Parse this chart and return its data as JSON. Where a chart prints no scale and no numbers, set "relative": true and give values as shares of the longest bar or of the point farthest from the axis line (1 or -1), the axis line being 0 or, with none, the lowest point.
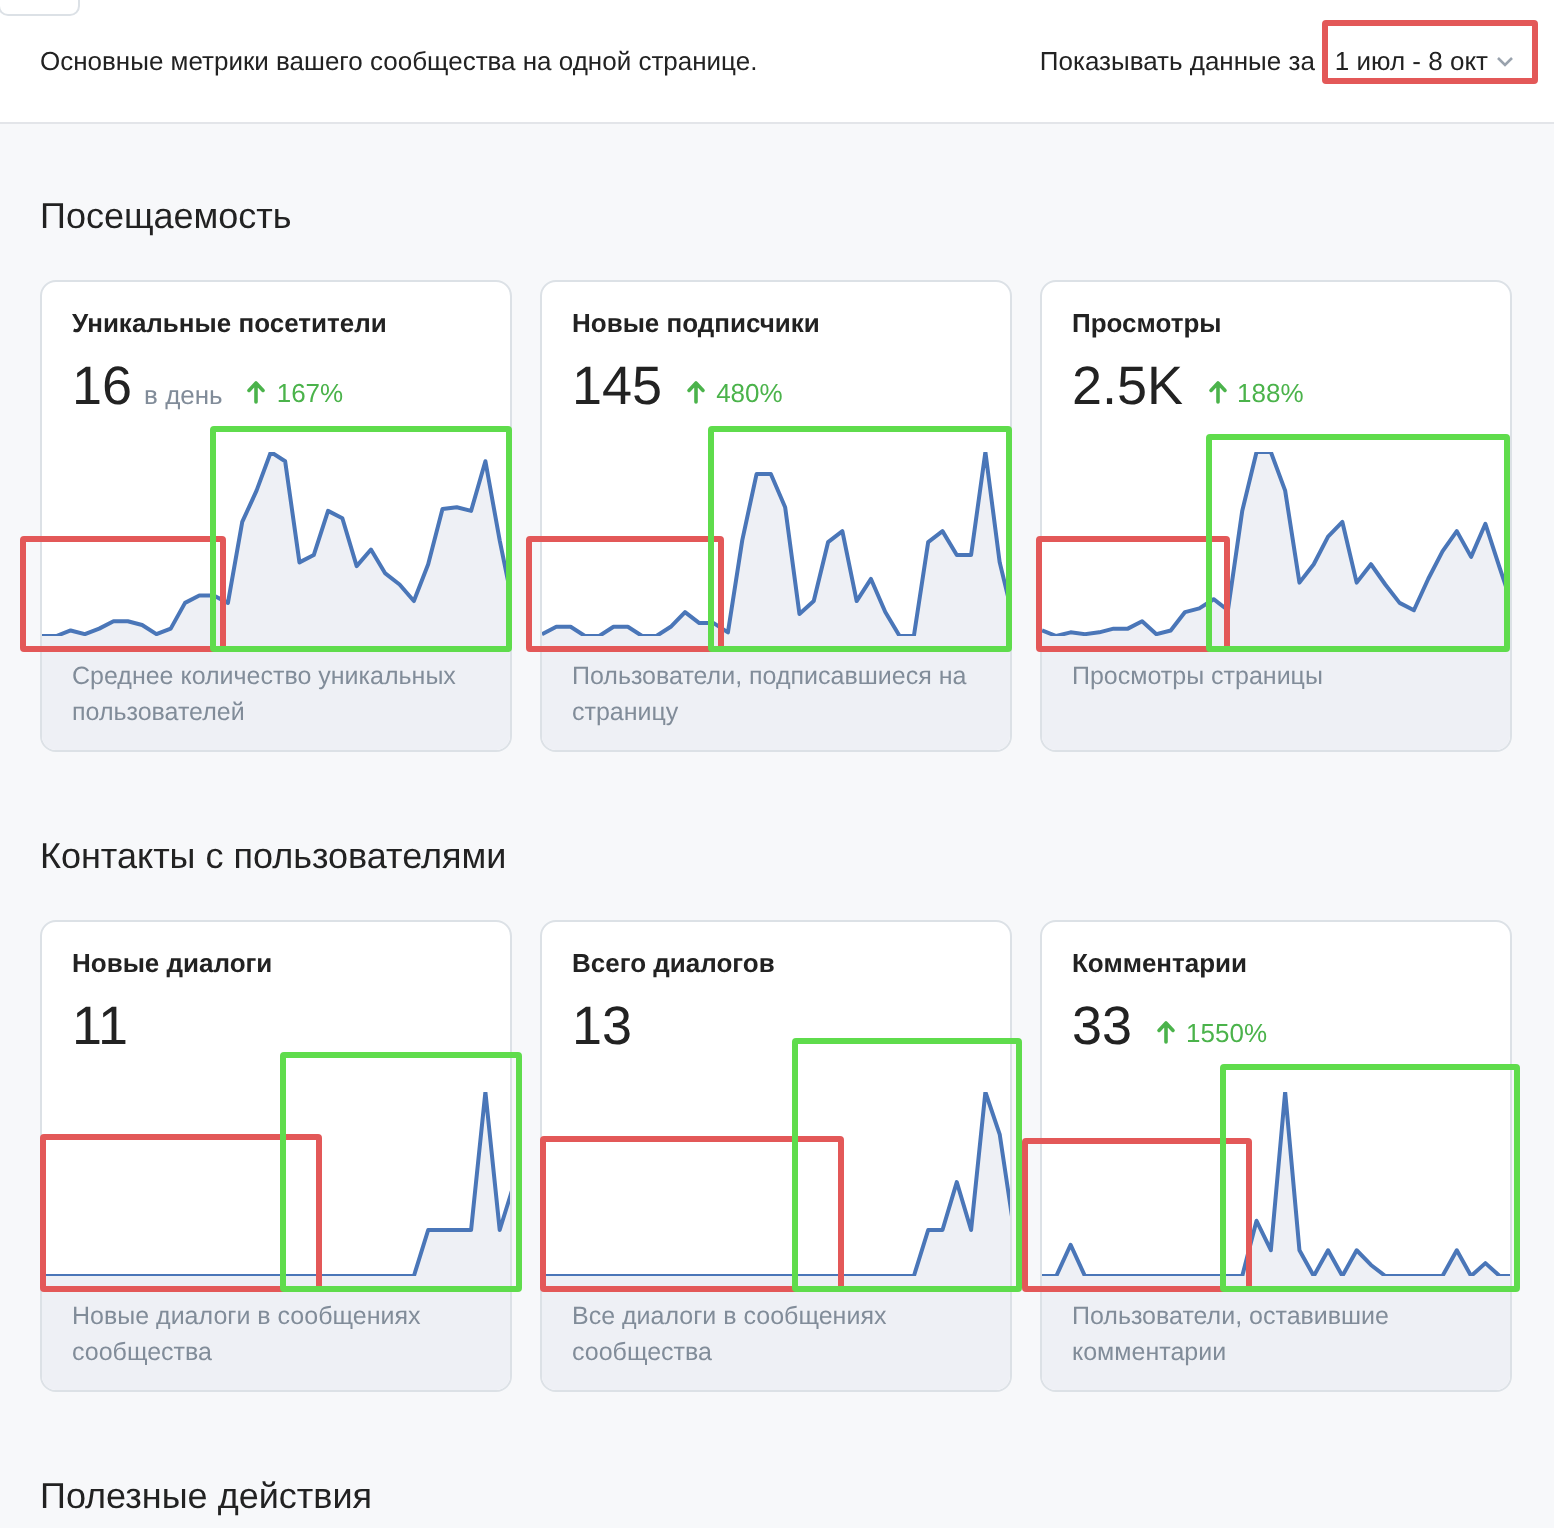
{
  "chart_data": [
    {
      "type": "other",
      "annotations": [
        "Основные метрики вашего сообщества на одной странице.",
        "Показывать данные за",
        "1 июл - 8 окт"
      ]
    },
    {
      "type": "other",
      "title": "Посещаемость"
    },
    {
      "type": "area",
      "relative": true,
      "title": "Уникальные посетители",
      "subtitle": "16 в день",
      "annotations": [
        "167%"
      ],
      "xlabel": "Среднее количество уникальных пользователей",
      "categories": [
        null,
        null,
        null,
        null,
        null,
        null,
        null,
        null,
        null,
        null,
        null,
        null,
        null,
        null,
        null,
        null,
        null,
        null,
        null,
        null,
        null,
        null,
        null,
        null,
        null,
        null,
        null,
        null,
        null,
        null,
        null,
        null,
        null,
        null
      ],
      "series": [
        {
          "color": "#4a76b8",
          "values": [
            0,
            0,
            0.03,
            0.01,
            0.04,
            0.08,
            0.08,
            0.06,
            0.01,
            0.04,
            0.18,
            0.22,
            0.22,
            0.18,
            0.62,
            0.79,
            1,
            0.95,
            0.4,
            0.44,
            0.68,
            0.64,
            0.38,
            0.47,
            0.34,
            0.28,
            0.19,
            0.39,
            0.69,
            0.7,
            0.68,
            0.95,
            0.52,
            0.14
          ]
        }
      ]
    },
    {
      "type": "area",
      "relative": true,
      "title": "Новые подписчики",
      "subtitle": "145",
      "annotations": [
        "480%"
      ],
      "xlabel": "Пользователи, подписавшиеся на страницу",
      "categories": [
        null,
        null,
        null,
        null,
        null,
        null,
        null,
        null,
        null,
        null,
        null,
        null,
        null,
        null,
        null,
        null,
        null,
        null,
        null,
        null,
        null,
        null,
        null,
        null,
        null,
        null,
        null,
        null,
        null,
        null,
        null,
        null,
        null,
        null
      ],
      "series": [
        {
          "color": "#4a76b8",
          "values": [
            0.01,
            0.05,
            0.05,
            0,
            0,
            0.05,
            0.05,
            0,
            0,
            0.05,
            0.13,
            0.07,
            0.07,
            0.02,
            0.52,
            0.88,
            0.88,
            0.7,
            0.12,
            0.19,
            0.51,
            0.57,
            0.19,
            0.31,
            0.13,
            0,
            0,
            0.51,
            0.57,
            0.44,
            0.44,
            1,
            0.4,
            0.08
          ]
        }
      ]
    },
    {
      "type": "area",
      "relative": true,
      "title": "Просмотры",
      "subtitle": "2.5K",
      "annotations": [
        "188%"
      ],
      "xlabel": "Просмотры страницы",
      "categories": [
        null,
        null,
        null,
        null,
        null,
        null,
        null,
        null,
        null,
        null,
        null,
        null,
        null,
        null,
        null,
        null,
        null,
        null,
        null,
        null,
        null,
        null,
        null,
        null,
        null,
        null,
        null,
        null,
        null,
        null,
        null,
        null,
        null,
        null
      ],
      "series": [
        {
          "color": "#4a76b8",
          "values": [
            0.03,
            0,
            0.02,
            0.01,
            0.02,
            0.04,
            0.04,
            0.08,
            0.01,
            0.03,
            0.13,
            0.15,
            0.2,
            0.14,
            0.68,
            1,
            1,
            0.79,
            0.29,
            0.39,
            0.54,
            0.62,
            0.29,
            0.39,
            0.28,
            0.18,
            0.14,
            0.31,
            0.46,
            0.57,
            0.43,
            0.61,
            0.37,
            0.14
          ]
        }
      ]
    },
    {
      "type": "other",
      "title": "Контакты с пользователями"
    },
    {
      "type": "area",
      "relative": true,
      "title": "Новые диалоги",
      "subtitle": "11",
      "xlabel": "Новые диалоги в сообщениях сообщества",
      "categories": [
        null,
        null,
        null,
        null,
        null,
        null,
        null,
        null,
        null,
        null,
        null,
        null,
        null,
        null,
        null,
        null,
        null,
        null,
        null,
        null,
        null,
        null,
        null,
        null,
        null,
        null,
        null,
        null,
        null,
        null,
        null,
        null,
        null,
        null
      ],
      "series": [
        {
          "color": "#4a76b8",
          "values": [
            0,
            0,
            0,
            0,
            0,
            0,
            0,
            0,
            0,
            0,
            0,
            0,
            0,
            0,
            0,
            0,
            0,
            0,
            0,
            0,
            0,
            0,
            0,
            0,
            0,
            0,
            0,
            0.25,
            0.25,
            0.25,
            0.25,
            1,
            0.25,
            0.5
          ]
        }
      ]
    },
    {
      "type": "area",
      "relative": true,
      "title": "Всего диалогов",
      "subtitle": "13",
      "xlabel": "Все диалоги в сообщениях сообщества",
      "categories": [
        null,
        null,
        null,
        null,
        null,
        null,
        null,
        null,
        null,
        null,
        null,
        null,
        null,
        null,
        null,
        null,
        null,
        null,
        null,
        null,
        null,
        null,
        null,
        null,
        null,
        null,
        null,
        null,
        null,
        null,
        null,
        null,
        null,
        null
      ],
      "series": [
        {
          "color": "#4a76b8",
          "values": [
            0,
            0,
            0,
            0,
            0,
            0,
            0,
            0,
            0,
            0,
            0,
            0,
            0,
            0,
            0,
            0,
            0,
            0,
            0,
            0,
            0,
            0,
            0,
            0,
            0,
            0,
            0,
            0.25,
            0.25,
            0.51,
            0.25,
            1,
            0.77,
            0.25
          ]
        }
      ]
    },
    {
      "type": "area",
      "relative": true,
      "title": "Комментарии",
      "subtitle": "33",
      "annotations": [
        "1550%"
      ],
      "xlabel": "Пользователи, оставившие комментарии",
      "categories": [
        null,
        null,
        null,
        null,
        null,
        null,
        null,
        null,
        null,
        null,
        null,
        null,
        null,
        null,
        null,
        null,
        null,
        null,
        null,
        null,
        null,
        null,
        null,
        null,
        null,
        null,
        null,
        null,
        null,
        null,
        null,
        null,
        null,
        null
      ],
      "series": [
        {
          "color": "#4a76b8",
          "values": [
            0,
            0,
            0.17,
            0,
            0,
            0,
            0,
            0,
            0,
            0,
            0,
            0,
            0,
            0,
            0,
            0.3,
            0.14,
            1,
            0.14,
            0,
            0.14,
            0,
            0.14,
            0.06,
            0,
            0,
            0,
            0,
            0,
            0.14,
            0,
            0.07,
            0,
            0
          ]
        }
      ]
    },
    {
      "type": "other",
      "title": "Полезные действия"
    }
  ]
}
